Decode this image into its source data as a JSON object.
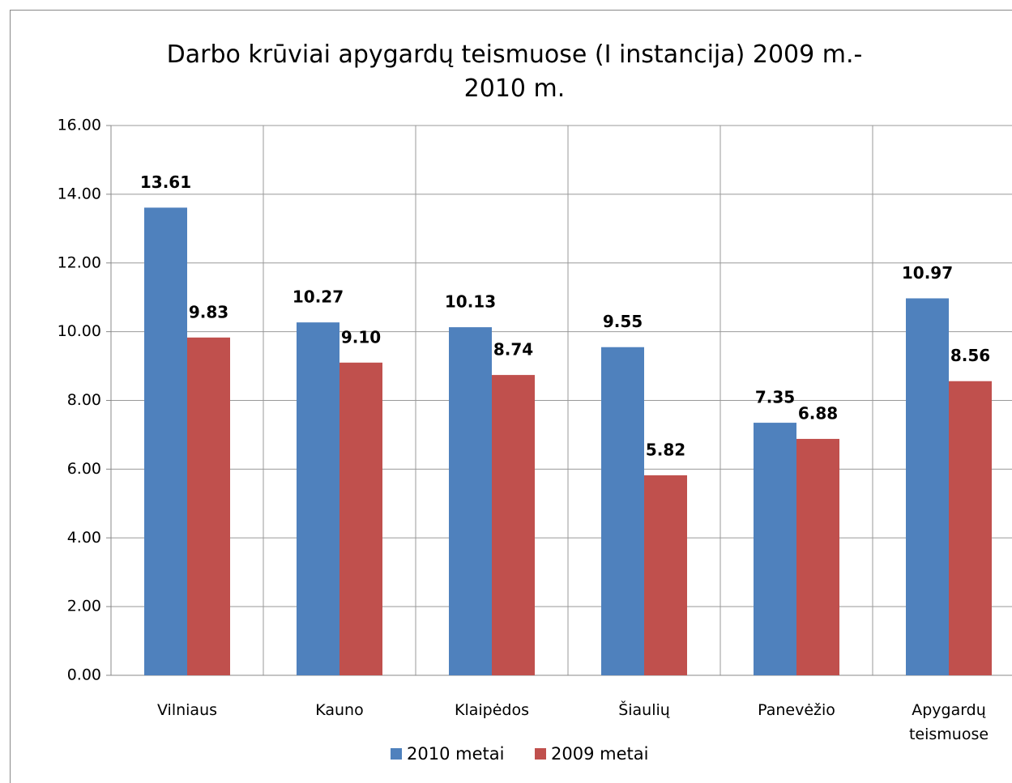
{
  "chart_data": {
    "type": "bar",
    "title": "Darbo krūviai apygardų teismuose (I instancija) 2009 m.-\n2010 m.",
    "categories": [
      "Vilniaus",
      "Kauno",
      "Klaipėdos",
      "Šiaulių",
      "Panevėžio",
      "Apygardų teismuose"
    ],
    "series": [
      {
        "name": "2010 metai",
        "color": "#4f81bd",
        "values": [
          13.61,
          10.27,
          10.13,
          9.55,
          7.35,
          10.97
        ],
        "value_labels": [
          "13.61",
          "10.27",
          "10.13",
          "9.55",
          "7.35",
          "10.97"
        ]
      },
      {
        "name": "2009 metai",
        "color": "#c0504d",
        "values": [
          9.83,
          9.1,
          8.74,
          5.82,
          6.88,
          8.56
        ],
        "value_labels": [
          "9.83",
          "9.10",
          "8.74",
          "5.82",
          "6.88",
          "8.56"
        ]
      }
    ],
    "ylim": [
      0,
      16
    ],
    "yticks": [
      {
        "value": 0,
        "label": "0.00"
      },
      {
        "value": 2,
        "label": "2.00"
      },
      {
        "value": 4,
        "label": "4.00"
      },
      {
        "value": 6,
        "label": "6.00"
      },
      {
        "value": 8,
        "label": "8.00"
      },
      {
        "value": 10,
        "label": "10.00"
      },
      {
        "value": 12,
        "label": "12.00"
      },
      {
        "value": 14,
        "label": "14.00"
      },
      {
        "value": 16,
        "label": "16.00"
      }
    ],
    "grid": true,
    "legend": "bottom"
  }
}
